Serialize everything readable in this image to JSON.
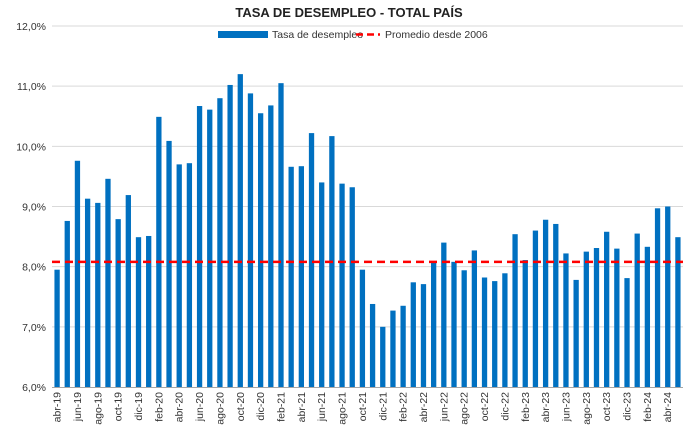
{
  "chart_data": {
    "type": "bar",
    "title": "TASA DE DESEMPLEO - TOTAL PAÍS",
    "xlabel": "",
    "ylabel": "",
    "ylim": [
      6.0,
      12.0
    ],
    "yticks": [
      "6,0%",
      "7,0%",
      "8,0%",
      "9,0%",
      "10,0%",
      "11,0%",
      "12,0%"
    ],
    "ytick_values": [
      6.0,
      7.0,
      8.0,
      9.0,
      10.0,
      11.0,
      12.0
    ],
    "categories": [
      "abr-19",
      "may-19",
      "jun-19",
      "jul-19",
      "ago-19",
      "sep-19",
      "oct-19",
      "nov-19",
      "dic-19",
      "ene-20",
      "feb-20",
      "mar-20",
      "abr-20",
      "may-20",
      "jun-20",
      "jul-20",
      "ago-20",
      "sep-20",
      "oct-20",
      "nov-20",
      "dic-20",
      "ene-21",
      "feb-21",
      "mar-21",
      "abr-21",
      "may-21",
      "jun-21",
      "jul-21",
      "ago-21",
      "sep-21",
      "oct-21",
      "nov-21",
      "dic-21",
      "ene-22",
      "feb-22",
      "mar-22",
      "abr-22",
      "may-22",
      "jun-22",
      "jul-22",
      "ago-22",
      "sep-22",
      "oct-22",
      "nov-22",
      "dic-22",
      "ene-23",
      "feb-23",
      "mar-23",
      "abr-23",
      "may-23",
      "jun-23",
      "jul-23",
      "ago-23",
      "sep-23",
      "oct-23",
      "nov-23",
      "dic-23",
      "ene-24",
      "feb-24",
      "mar-24",
      "abr-24",
      "may-24"
    ],
    "x_tick_labels_shown": [
      "abr-19",
      "jun-19",
      "ago-19",
      "oct-19",
      "dic-19",
      "feb-20",
      "abr-20",
      "jun-20",
      "ago-20",
      "oct-20",
      "dic-20",
      "feb-21",
      "abr-21",
      "jun-21",
      "ago-21",
      "oct-21",
      "dic-21",
      "feb-22",
      "abr-22",
      "jun-22",
      "ago-22",
      "oct-22",
      "dic-22",
      "feb-23",
      "abr-23",
      "jun-23",
      "ago-23",
      "oct-23",
      "dic-23",
      "feb-24",
      "abr-24"
    ],
    "series": [
      {
        "name": "Tasa de desempleo",
        "color": "#0070C0",
        "values": [
          7.95,
          8.76,
          9.76,
          9.13,
          9.06,
          9.46,
          8.79,
          9.19,
          8.49,
          8.51,
          10.49,
          10.09,
          9.7,
          9.72,
          10.67,
          10.61,
          10.8,
          11.02,
          11.2,
          10.88,
          10.55,
          10.68,
          11.05,
          9.66,
          9.67,
          10.22,
          9.4,
          10.17,
          9.38,
          9.32,
          7.95,
          7.38,
          7.0,
          7.27,
          7.35,
          7.74,
          7.71,
          8.07,
          8.4,
          8.08,
          7.94,
          8.27,
          7.82,
          7.76,
          7.89,
          8.54,
          8.11,
          8.6,
          8.78,
          8.71,
          8.22,
          7.78,
          8.25,
          8.31,
          8.58,
          8.3,
          7.81,
          8.55,
          8.33,
          8.97,
          9.0,
          8.49
        ]
      }
    ],
    "reference_line": {
      "name": "Promedio desde 2006",
      "value": 8.08,
      "color": "#FF0000",
      "style": "dashed"
    },
    "legend_position": "top-center",
    "grid": true
  }
}
